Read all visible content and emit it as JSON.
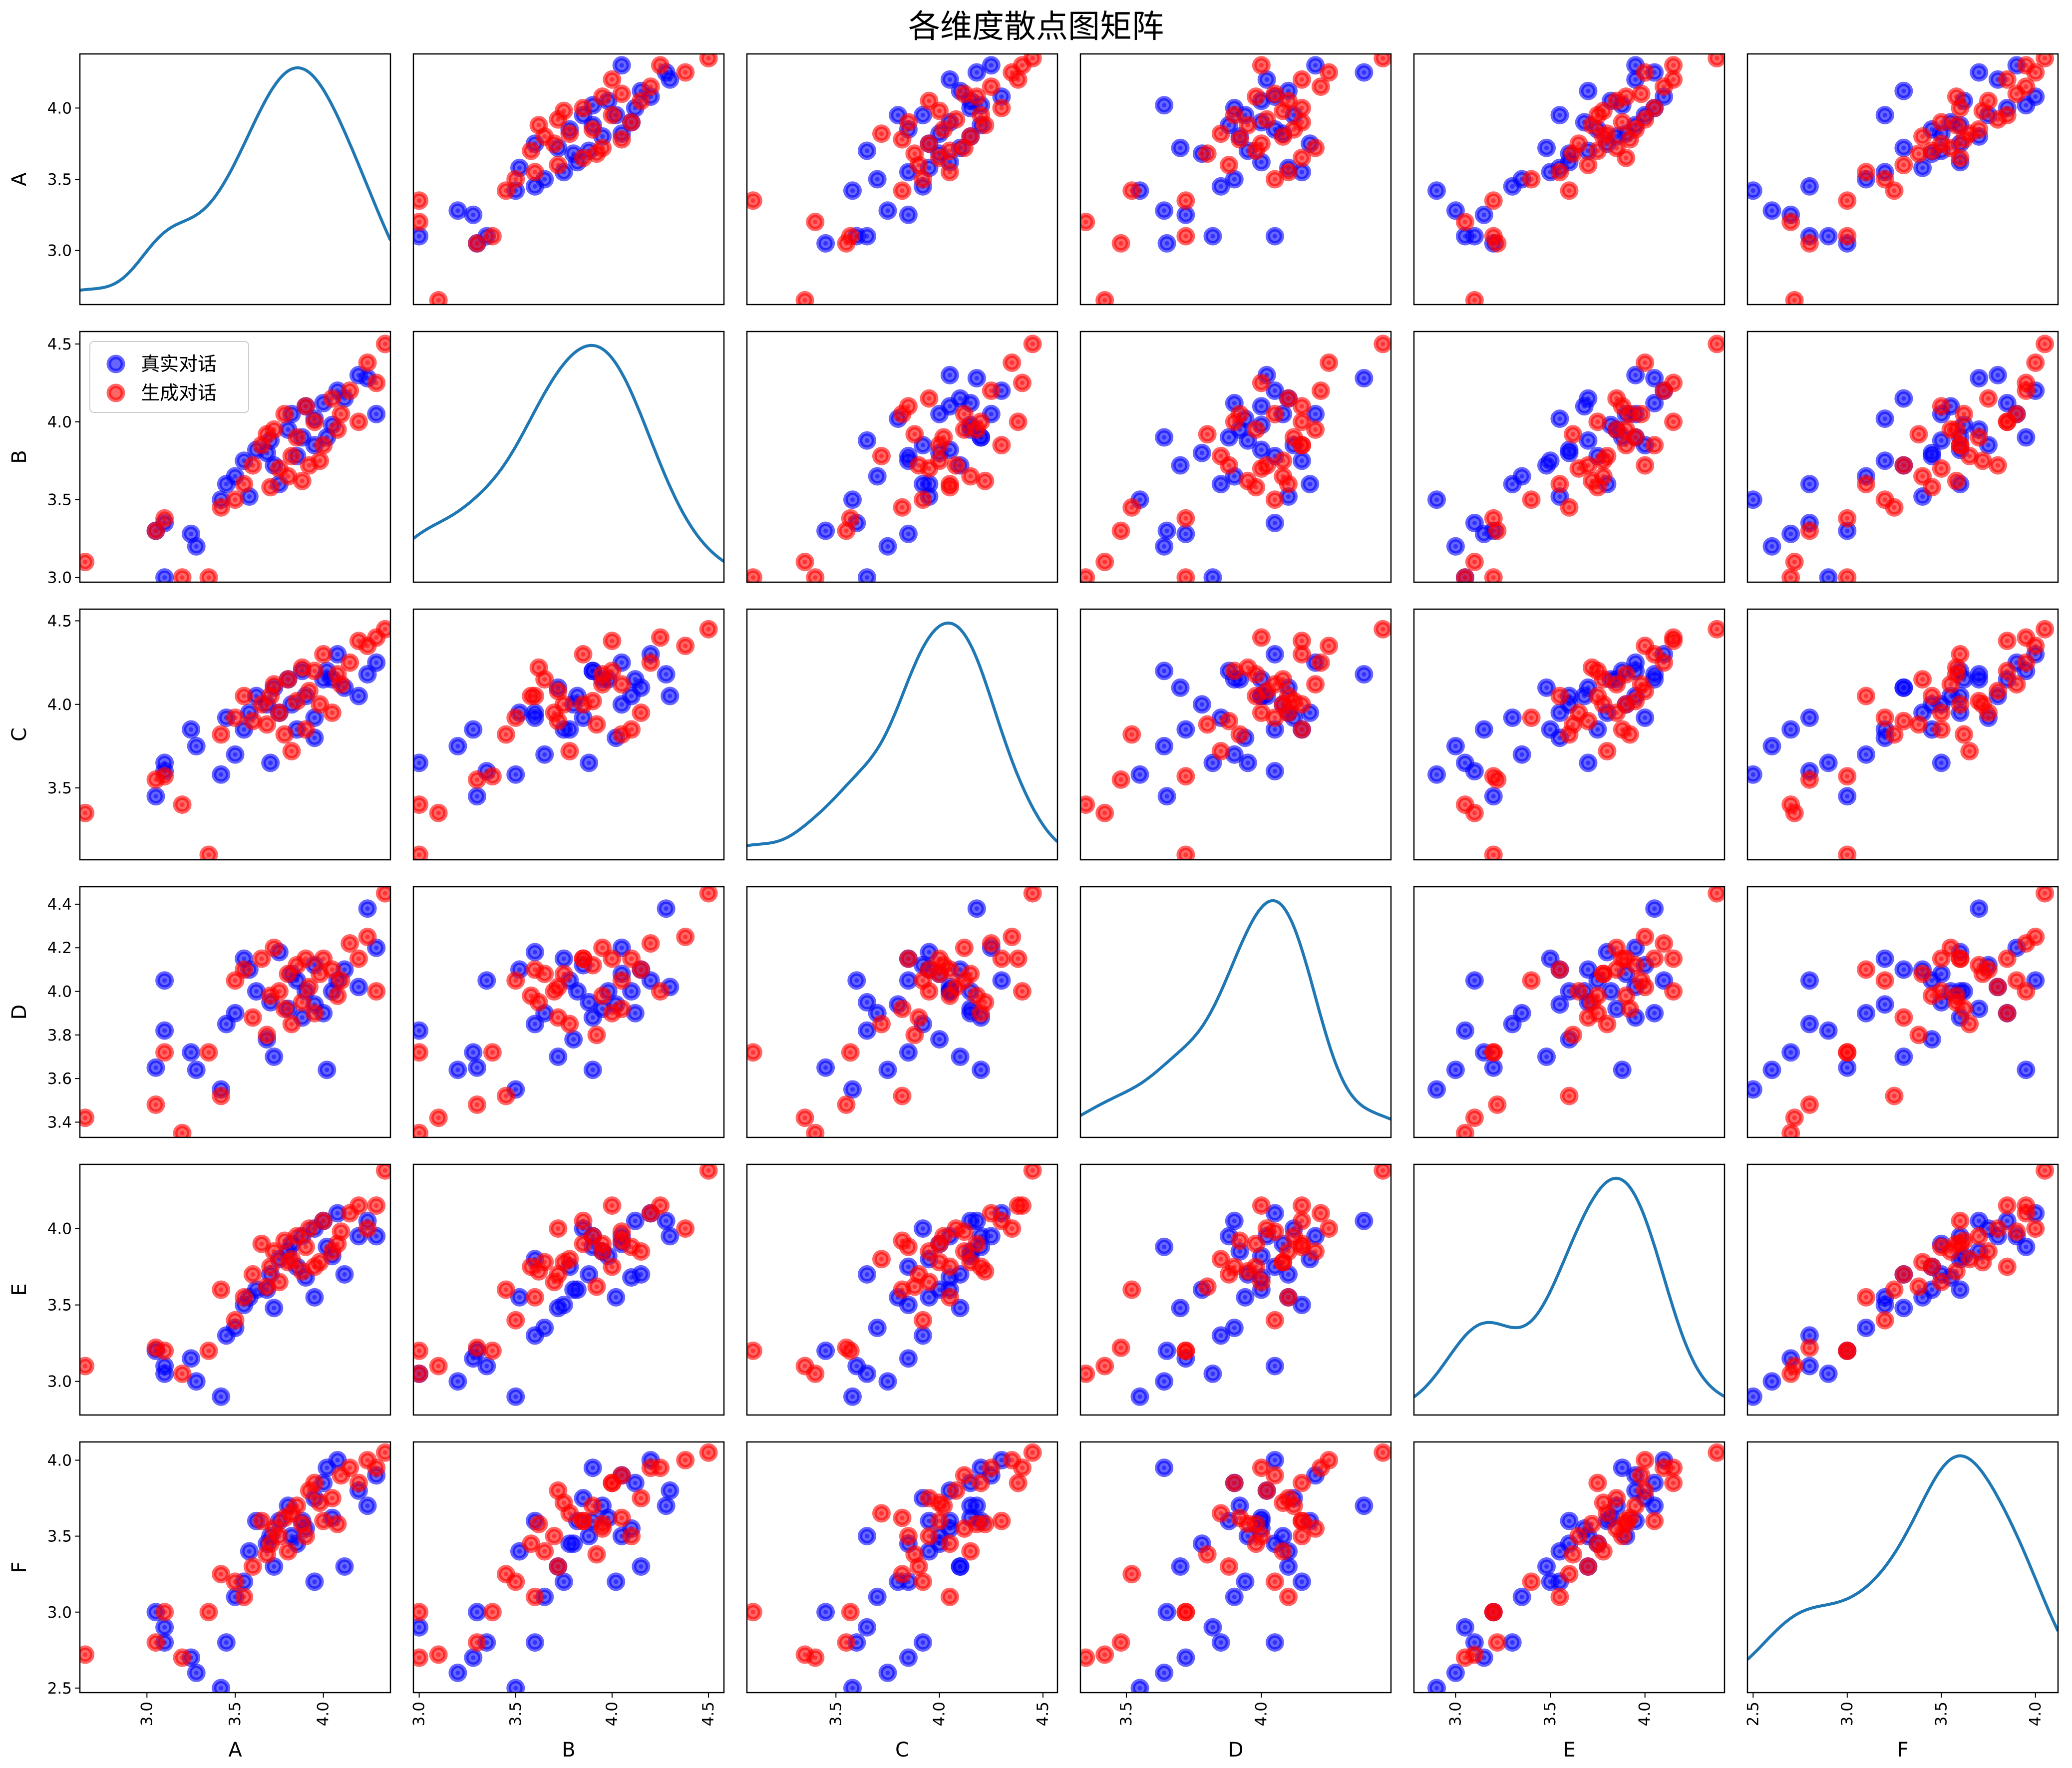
{
  "title": "各维度散点图矩阵",
  "chart_data": {
    "type": "scatter",
    "title": "各维度散点图矩阵",
    "variables": [
      "A",
      "B",
      "C",
      "D",
      "E",
      "F"
    ],
    "diagonal": "kde",
    "kde_color": "#1f77b4",
    "legend": {
      "placement": "top-left of panel (row B, column A)",
      "entries": [
        "真实对话",
        "生成对话"
      ]
    },
    "series": [
      {
        "name": "真实对话",
        "color": "#0000ff",
        "alpha": 0.6,
        "points": [
          [
            3.05,
            3.3,
            3.45,
            3.65,
            3.2,
            3.0
          ],
          [
            3.1,
            3.35,
            3.6,
            4.05,
            3.1,
            2.8
          ],
          [
            3.1,
            3.0,
            3.65,
            3.82,
            3.05,
            2.9
          ],
          [
            3.25,
            3.28,
            3.85,
            3.72,
            3.15,
            2.7
          ],
          [
            3.28,
            3.2,
            3.75,
            3.64,
            3.0,
            2.6
          ],
          [
            3.42,
            3.5,
            3.58,
            3.55,
            2.9,
            2.5
          ],
          [
            3.45,
            3.6,
            3.92,
            3.85,
            3.3,
            2.8
          ],
          [
            3.5,
            3.65,
            3.7,
            3.9,
            3.35,
            3.1
          ],
          [
            3.55,
            3.75,
            3.85,
            4.15,
            3.5,
            3.2
          ],
          [
            3.58,
            3.52,
            3.95,
            4.1,
            3.55,
            3.4
          ],
          [
            3.62,
            3.82,
            4.05,
            4.0,
            3.6,
            3.6
          ],
          [
            3.7,
            3.88,
            3.65,
            3.95,
            3.7,
            3.5
          ],
          [
            3.72,
            3.72,
            4.1,
            3.7,
            3.48,
            3.3
          ],
          [
            3.75,
            3.6,
            3.95,
            4.18,
            3.8,
            3.6
          ],
          [
            3.8,
            3.95,
            4.15,
            3.92,
            3.85,
            3.7
          ],
          [
            3.82,
            4.05,
            4.0,
            4.08,
            3.9,
            3.5
          ],
          [
            3.85,
            3.78,
            3.85,
            4.05,
            3.75,
            3.45
          ],
          [
            3.88,
            3.9,
            4.2,
            3.88,
            3.95,
            3.6
          ],
          [
            3.9,
            4.1,
            4.05,
            4.0,
            3.68,
            3.55
          ],
          [
            3.95,
            3.85,
            3.92,
            4.12,
            4.0,
            3.75
          ],
          [
            4.0,
            4.12,
            4.15,
            3.9,
            4.05,
            3.85
          ],
          [
            4.02,
            3.9,
            4.2,
            3.64,
            3.88,
            3.95
          ],
          [
            4.08,
            4.2,
            4.3,
            4.05,
            4.1,
            4.0
          ],
          [
            4.12,
            4.15,
            4.1,
            4.1,
            3.7,
            3.3
          ],
          [
            4.2,
            4.3,
            4.05,
            4.02,
            3.95,
            3.8
          ],
          [
            4.25,
            4.28,
            4.18,
            4.38,
            4.05,
            3.7
          ],
          [
            4.3,
            4.05,
            4.25,
            4.2,
            3.95,
            3.9
          ],
          [
            3.68,
            3.8,
            4.0,
            3.78,
            3.6,
            3.45
          ],
          [
            3.95,
            4.02,
            3.8,
            3.94,
            3.55,
            3.2
          ],
          [
            4.05,
            3.98,
            4.15,
            4.0,
            3.82,
            3.62
          ]
        ]
      },
      {
        "name": "生成对话",
        "color": "#ff0000",
        "alpha": 0.6,
        "points": [
          [
            2.65,
            3.1,
            3.35,
            3.42,
            3.1,
            2.72
          ],
          [
            3.05,
            3.3,
            3.55,
            3.48,
            3.22,
            2.8
          ],
          [
            3.1,
            3.38,
            3.57,
            3.72,
            3.2,
            3.0
          ],
          [
            3.2,
            3.0,
            3.4,
            3.35,
            3.05,
            2.7
          ],
          [
            3.35,
            3.0,
            3.1,
            3.72,
            3.2,
            3.0
          ],
          [
            3.42,
            3.45,
            3.82,
            3.52,
            3.6,
            3.25
          ],
          [
            3.5,
            3.5,
            3.92,
            4.05,
            3.4,
            3.2
          ],
          [
            3.55,
            3.6,
            4.05,
            4.1,
            3.55,
            3.1
          ],
          [
            3.6,
            3.72,
            3.9,
            3.88,
            3.7,
            3.3
          ],
          [
            3.65,
            3.85,
            4.0,
            4.15,
            3.9,
            3.6
          ],
          [
            3.7,
            3.58,
            4.05,
            3.98,
            3.75,
            3.45
          ],
          [
            3.72,
            3.95,
            4.12,
            4.2,
            3.85,
            3.55
          ],
          [
            3.75,
            3.7,
            3.95,
            4.0,
            3.65,
            3.5
          ],
          [
            3.78,
            4.05,
            3.82,
            3.92,
            3.92,
            3.62
          ],
          [
            3.8,
            3.65,
            4.15,
            4.08,
            3.78,
            3.4
          ],
          [
            3.82,
            3.78,
            3.72,
            3.85,
            3.8,
            3.65
          ],
          [
            3.85,
            3.9,
            4.02,
            4.12,
            3.95,
            3.7
          ],
          [
            3.88,
            3.62,
            4.22,
            3.95,
            3.72,
            3.58
          ],
          [
            3.9,
            4.1,
            3.85,
            4.15,
            3.88,
            3.5
          ],
          [
            3.92,
            3.72,
            4.08,
            4.02,
            4.0,
            3.8
          ],
          [
            3.95,
            4.0,
            4.2,
            3.9,
            3.75,
            3.85
          ],
          [
            4.0,
            3.85,
            4.3,
            4.15,
            4.05,
            3.6
          ],
          [
            4.05,
            4.15,
            3.95,
            4.1,
            3.85,
            3.75
          ],
          [
            4.1,
            4.05,
            4.12,
            4.05,
            3.98,
            3.9
          ],
          [
            4.15,
            4.2,
            4.25,
            4.22,
            4.1,
            3.95
          ],
          [
            4.2,
            4.0,
            4.38,
            4.15,
            4.15,
            3.85
          ],
          [
            4.25,
            4.38,
            4.35,
            4.25,
            4.0,
            4.0
          ],
          [
            4.3,
            4.25,
            4.4,
            4.0,
            4.15,
            3.95
          ],
          [
            4.35,
            4.5,
            4.45,
            4.45,
            4.38,
            4.05
          ],
          [
            3.68,
            3.92,
            3.88,
            3.8,
            3.62,
            3.38
          ],
          [
            3.98,
            3.75,
            4.0,
            4.08,
            3.78,
            3.72
          ],
          [
            4.08,
            3.95,
            4.18,
            3.98,
            3.9,
            3.58
          ]
        ]
      }
    ],
    "axes": [
      {
        "name": "A",
        "range": [
          2.62,
          4.38
        ],
        "ticks": [
          "3.0",
          "3.5",
          "4.0"
        ]
      },
      {
        "name": "B",
        "range": [
          2.97,
          4.58
        ],
        "ticks": [
          "3.0",
          "3.5",
          "4.0",
          "4.5"
        ]
      },
      {
        "name": "C",
        "range": [
          3.07,
          4.57
        ],
        "ticks": [
          "3.5",
          "4.0",
          "4.5"
        ]
      },
      {
        "name": "D",
        "range": [
          3.33,
          4.48
        ],
        "ticks": [
          "3.4",
          "3.6",
          "3.8",
          "4.0",
          "4.2",
          "4.4"
        ]
      },
      {
        "name": "E",
        "range": [
          2.78,
          4.42
        ],
        "ticks": [
          "3.0",
          "3.5",
          "4.0"
        ]
      },
      {
        "name": "F",
        "range": [
          2.47,
          4.12
        ],
        "ticks": [
          "2.5",
          "3.0",
          "3.5",
          "4.0"
        ]
      }
    ],
    "x_tick_labels": {
      "A": [
        "3.0",
        "3.5",
        "4.0"
      ],
      "B": [
        "3.0",
        "3.5",
        "4.0",
        "4.5"
      ],
      "C": [
        "3.5",
        "4.0",
        "4.5"
      ],
      "D": [
        "3.5",
        "4.0"
      ],
      "E": [
        "3.0",
        "3.5",
        "4.0"
      ],
      "F": [
        "2.5",
        "3.0",
        "3.5",
        "4.0"
      ]
    },
    "grid": false
  }
}
